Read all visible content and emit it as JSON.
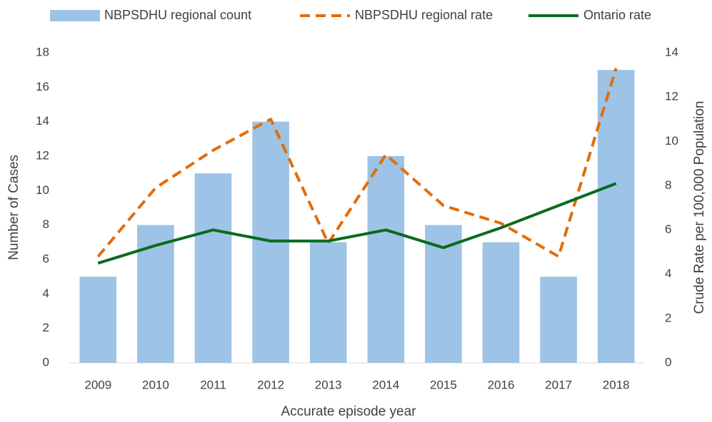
{
  "chart_data": {
    "type": "bar",
    "x_label": "Accurate episode year",
    "y_label": "Number of Cases",
    "y2_label": "Crude Rate per 100,000 Population",
    "categories": [
      "2009",
      "2010",
      "2011",
      "2012",
      "2013",
      "2014",
      "2015",
      "2016",
      "2017",
      "2018"
    ],
    "series": [
      {
        "name": "NBPSDHU regional count",
        "type": "bar",
        "color": "#9dc3e6",
        "values": [
          5,
          8,
          11,
          14,
          7,
          12,
          8,
          7,
          5,
          17
        ]
      },
      {
        "name": "NBPSDHU regional rate",
        "type": "line",
        "dashed": true,
        "axis": "y2",
        "color": "#e36c0a",
        "values": [
          4.8,
          7.9,
          9.6,
          11.0,
          5.4,
          9.4,
          7.1,
          6.3,
          4.8,
          13.3
        ]
      },
      {
        "name": "Ontario rate",
        "type": "line",
        "dashed": false,
        "axis": "y2",
        "color": "#0a6b1e",
        "values": [
          4.5,
          5.3,
          6.0,
          5.5,
          5.5,
          6.0,
          5.2,
          6.1,
          7.1,
          8.1
        ]
      }
    ],
    "ylim": [
      0,
      18
    ],
    "yticks": [
      0,
      2,
      4,
      6,
      8,
      10,
      12,
      14,
      16,
      18
    ],
    "y2lim": [
      0,
      14
    ],
    "y2ticks": [
      0,
      2,
      4,
      6,
      8,
      10,
      12,
      14
    ],
    "legend": "top"
  }
}
